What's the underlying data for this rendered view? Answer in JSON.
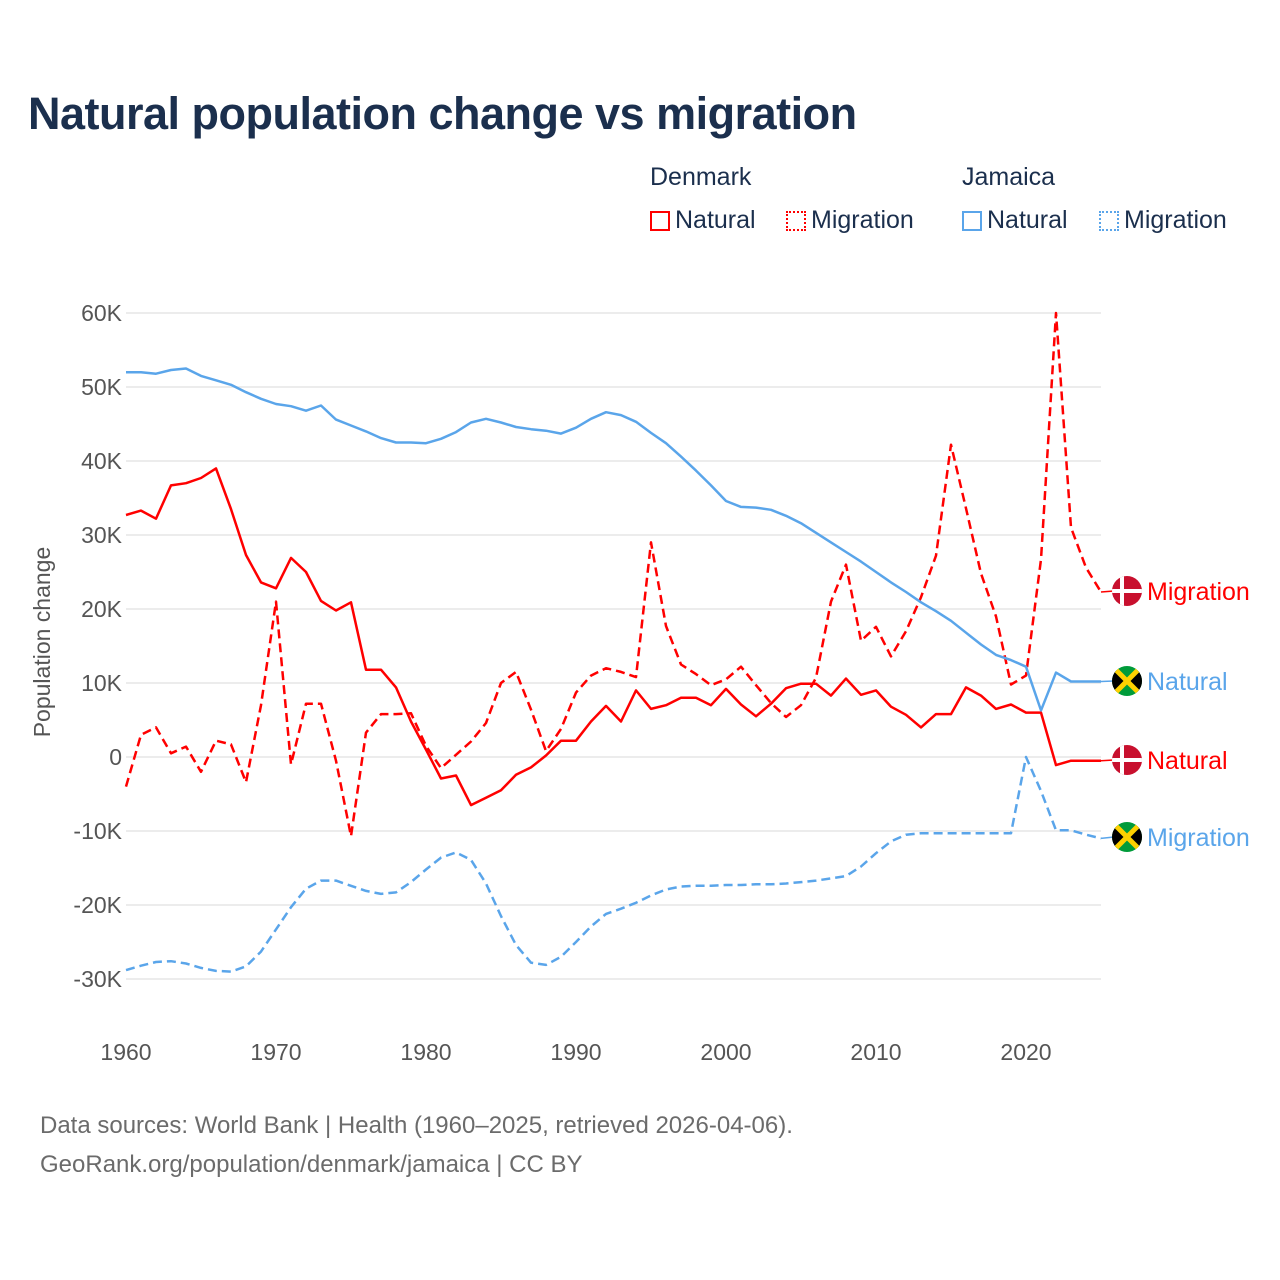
{
  "chart_data": {
    "type": "line",
    "title": "Natural population change vs migration",
    "xlabel": "",
    "ylabel": "Population change",
    "xlim": [
      1960,
      2025
    ],
    "ylim": [
      -30000,
      60000
    ],
    "grid": true,
    "x_ticks": [
      "1960",
      "1970",
      "1980",
      "1990",
      "2000",
      "2010",
      "2020"
    ],
    "y_ticks": [
      {
        "value": 60000,
        "label": "60K"
      },
      {
        "value": 50000,
        "label": "50K"
      },
      {
        "value": 40000,
        "label": "40K"
      },
      {
        "value": 30000,
        "label": "30K"
      },
      {
        "value": 20000,
        "label": "20K"
      },
      {
        "value": 10000,
        "label": "10K"
      },
      {
        "value": 0,
        "label": "0"
      },
      {
        "value": -10000,
        "label": "-10K"
      },
      {
        "value": -20000,
        "label": "-20K"
      },
      {
        "value": -30000,
        "label": "-30K"
      }
    ],
    "legend": {
      "placement": "top-right",
      "groups": [
        {
          "country": "Denmark",
          "items": [
            "Natural",
            "Migration"
          ]
        },
        {
          "country": "Jamaica",
          "items": [
            "Natural",
            "Migration"
          ]
        }
      ]
    },
    "x_start": 1960,
    "series": [
      {
        "name": "Denmark Natural",
        "country": "Denmark",
        "kind": "Natural",
        "label": "Natural",
        "flag": "denmark",
        "color": "#ff0000",
        "dashed": false,
        "values": [
          32700,
          33300,
          32200,
          36700,
          37000,
          37700,
          39000,
          33500,
          27300,
          23600,
          22800,
          26900,
          25000,
          21100,
          19800,
          20900,
          11800,
          11800,
          9400,
          4800,
          1000,
          -2900,
          -2500,
          -6500,
          -5500,
          -4500,
          -2400,
          -1400,
          200,
          2200,
          2200,
          4800,
          6900,
          4800,
          9000,
          6500,
          7000,
          8000,
          8000,
          7000,
          9200,
          7100,
          5500,
          7200,
          9300,
          9900,
          9900,
          8300,
          10600,
          8400,
          9000,
          6800,
          5700,
          4000,
          5800,
          5800,
          9400,
          8300,
          6500,
          7100,
          6000,
          6000,
          -1100,
          -500,
          -500,
          -500
        ]
      },
      {
        "name": "Denmark Migration",
        "country": "Denmark",
        "kind": "Migration",
        "label": "Migration",
        "flag": "denmark",
        "color": "#ff0000",
        "dashed": true,
        "values": [
          -4000,
          3000,
          4000,
          500,
          1400,
          -2000,
          2200,
          1700,
          -3400,
          7000,
          21000,
          -1000,
          7200,
          7200,
          -500,
          -10700,
          3300,
          5800,
          5800,
          5900,
          1500,
          -1500,
          300,
          2100,
          4600,
          10000,
          11500,
          6400,
          800,
          3800,
          8700,
          11000,
          12000,
          11500,
          10800,
          29000,
          17700,
          12500,
          11200,
          9700,
          10500,
          12200,
          9700,
          7300,
          5400,
          7000,
          10700,
          21000,
          26000,
          15700,
          17600,
          13600,
          17000,
          21600,
          27200,
          42200,
          33600,
          24800,
          19000,
          9800,
          11000,
          26700,
          60000,
          31000,
          25600,
          22300
        ]
      },
      {
        "name": "Jamaica Natural",
        "country": "Jamaica",
        "kind": "Natural",
        "label": "Natural",
        "flag": "jamaica",
        "color": "#5aa5ea",
        "dashed": false,
        "values": [
          52000,
          52000,
          51800,
          52300,
          52500,
          51500,
          50900,
          50300,
          49300,
          48400,
          47700,
          47400,
          46800,
          47500,
          45600,
          44800,
          44000,
          43100,
          42500,
          42500,
          42400,
          43000,
          43900,
          45200,
          45700,
          45200,
          44600,
          44300,
          44100,
          43700,
          44500,
          45700,
          46600,
          46200,
          45300,
          43800,
          42400,
          40600,
          38700,
          36700,
          34600,
          33800,
          33700,
          33400,
          32600,
          31600,
          30300,
          29000,
          27700,
          26400,
          25000,
          23600,
          22300,
          20900,
          19700,
          18400,
          16800,
          15200,
          13800,
          13100,
          12200,
          6300,
          11400,
          10200,
          10200,
          10200
        ]
      },
      {
        "name": "Jamaica Migration",
        "country": "Jamaica",
        "kind": "Migration",
        "label": "Migration",
        "flag": "jamaica",
        "color": "#5aa5ea",
        "dashed": true,
        "values": [
          -28800,
          -28200,
          -27700,
          -27600,
          -27900,
          -28500,
          -28900,
          -29000,
          -28300,
          -26300,
          -23300,
          -20300,
          -17800,
          -16700,
          -16700,
          -17400,
          -18100,
          -18500,
          -18300,
          -16900,
          -15200,
          -13600,
          -12900,
          -13900,
          -17100,
          -21500,
          -25400,
          -27800,
          -28100,
          -27000,
          -25000,
          -22900,
          -21200,
          -20500,
          -19700,
          -18700,
          -17900,
          -17500,
          -17400,
          -17400,
          -17300,
          -17300,
          -17200,
          -17200,
          -17100,
          -16900,
          -16700,
          -16400,
          -16100,
          -14800,
          -13000,
          -11400,
          -10500,
          -10300,
          -10300,
          -10300,
          -10300,
          -10300,
          -10300,
          -10300,
          0,
          -4600,
          -9900,
          -9900,
          -10500,
          -11000
        ]
      }
    ]
  },
  "footer": {
    "line1": "Data sources: World Bank | Health (1960–2025, retrieved 2026-04-06).",
    "line2": "GeoRank.org/population/denmark/jamaica | CC BY"
  }
}
